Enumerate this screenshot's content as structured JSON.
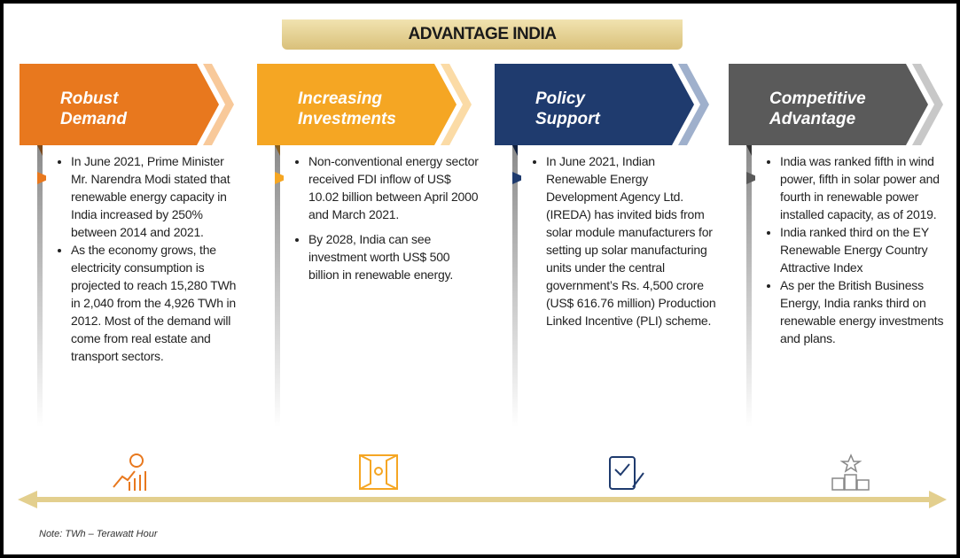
{
  "title": "ADVANTAGE INDIA",
  "columns": [
    {
      "heading": [
        "Robust",
        "Demand"
      ],
      "bullets": [
        "In June 2021, Prime Minister Mr. Narendra Modi stated that renewable energy capacity in India increased by 250% between 2014 and 2021.",
        "As the economy grows, the electricity consumption is projected to reach 15,280 TWh in 2,040 from the 4,926 TWh in 2012. Most of the demand will come from real estate and transport sectors."
      ]
    },
    {
      "heading": [
        "Increasing",
        "Investments"
      ],
      "bullets": [
        "Non-conventional energy sector received FDI inflow of US$ 10.02 billion between April 2000 and March 2021.",
        "By 2028, India can see investment worth US$ 500 billion in renewable energy."
      ]
    },
    {
      "heading": [
        "Policy",
        "Support"
      ],
      "bullets": [
        "In June 2021, Indian Renewable Energy Development Agency Ltd. (IREDA) has invited bids from solar module manufacturers for setting up solar manufacturing units under the central government’s Rs. 4,500 crore (US$ 616.76 million) Production Linked Incentive (PLI) scheme."
      ]
    },
    {
      "heading": [
        "Competitive",
        "Advantage"
      ],
      "bullets": [
        "India was ranked fifth in wind power, fifth in solar power and fourth in renewable power installed capacity, as of 2019.",
        "India ranked third on the EY Renewable Energy Country Attractive Index",
        "As per the British Business Energy, India ranks third on renewable energy investments and plans."
      ]
    }
  ],
  "note": "Note: TWh – Terawatt Hour"
}
